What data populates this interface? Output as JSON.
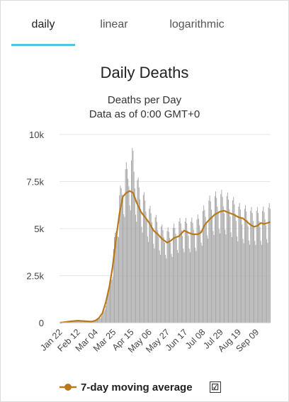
{
  "tabs": [
    {
      "label": "daily",
      "active": true
    },
    {
      "label": "linear",
      "active": false
    },
    {
      "label": "logarithmic",
      "active": false
    }
  ],
  "colors": {
    "bar": "#a6a6a6",
    "line": "#b8791a",
    "tab_underline": "#4fc3e8",
    "grid": "#e6e6e6"
  },
  "chart_data": {
    "type": "bar",
    "title": "Daily Deaths",
    "subtitle_line1": "Deaths per Day",
    "subtitle_line2": "Data as of 0:00 GMT+0",
    "ylim": [
      0,
      10000
    ],
    "y_ticks": [
      {
        "value": 0,
        "label": "0"
      },
      {
        "value": 2500,
        "label": "2.5k"
      },
      {
        "value": 5000,
        "label": "5k"
      },
      {
        "value": 7500,
        "label": "7.5k"
      },
      {
        "value": 10000,
        "label": "10k"
      }
    ],
    "x_ticks": [
      "Jan 22",
      "Feb 12",
      "Mar 04",
      "Mar 25",
      "Apr 15",
      "May 06",
      "May 27",
      "Jun 17",
      "Jul 08",
      "Jul 29",
      "Aug 19",
      "Sep 09"
    ],
    "x_tick_days": [
      0,
      21,
      42,
      63,
      84,
      105,
      126,
      147,
      168,
      189,
      210,
      231
    ],
    "n_days": 248,
    "daily_keypoints": [
      [
        0,
        20
      ],
      [
        10,
        60
      ],
      [
        20,
        110
      ],
      [
        28,
        90
      ],
      [
        35,
        60
      ],
      [
        42,
        110
      ],
      [
        48,
        250
      ],
      [
        53,
        700
      ],
      [
        58,
        1700
      ],
      [
        63,
        3500
      ],
      [
        68,
        5600
      ],
      [
        72,
        6500
      ],
      [
        76,
        7200
      ],
      [
        80,
        7500
      ],
      [
        84,
        7700
      ],
      [
        86,
        8300
      ],
      [
        89,
        7000
      ],
      [
        95,
        6300
      ],
      [
        100,
        5900
      ],
      [
        105,
        5400
      ],
      [
        112,
        5000
      ],
      [
        120,
        4500
      ],
      [
        126,
        4350
      ],
      [
        133,
        4500
      ],
      [
        140,
        4800
      ],
      [
        147,
        4800
      ],
      [
        154,
        4800
      ],
      [
        161,
        4900
      ],
      [
        168,
        5300
      ],
      [
        175,
        5800
      ],
      [
        182,
        6000
      ],
      [
        189,
        6100
      ],
      [
        196,
        6000
      ],
      [
        203,
        5800
      ],
      [
        210,
        5500
      ],
      [
        217,
        5400
      ],
      [
        224,
        5300
      ],
      [
        231,
        5300
      ],
      [
        238,
        5300
      ],
      [
        247,
        5500
      ]
    ],
    "series": [
      {
        "name": "7-day moving average",
        "points": [
          [
            0,
            0
          ],
          [
            14,
            80
          ],
          [
            21,
            110
          ],
          [
            30,
            80
          ],
          [
            37,
            60
          ],
          [
            42,
            120
          ],
          [
            46,
            260
          ],
          [
            50,
            520
          ],
          [
            54,
            1100
          ],
          [
            58,
            1900
          ],
          [
            62,
            3000
          ],
          [
            66,
            4500
          ],
          [
            70,
            5800
          ],
          [
            74,
            6700
          ],
          [
            78,
            6900
          ],
          [
            82,
            7000
          ],
          [
            86,
            6900
          ],
          [
            90,
            6400
          ],
          [
            95,
            5900
          ],
          [
            100,
            5600
          ],
          [
            105,
            5300
          ],
          [
            110,
            4900
          ],
          [
            115,
            4700
          ],
          [
            120,
            4450
          ],
          [
            126,
            4250
          ],
          [
            130,
            4350
          ],
          [
            134,
            4500
          ],
          [
            140,
            4600
          ],
          [
            146,
            4900
          ],
          [
            150,
            4800
          ],
          [
            156,
            4700
          ],
          [
            162,
            4700
          ],
          [
            166,
            4800
          ],
          [
            170,
            5200
          ],
          [
            176,
            5500
          ],
          [
            182,
            5750
          ],
          [
            188,
            5900
          ],
          [
            193,
            5950
          ],
          [
            198,
            5850
          ],
          [
            204,
            5750
          ],
          [
            210,
            5600
          ],
          [
            215,
            5550
          ],
          [
            220,
            5350
          ],
          [
            224,
            5200
          ],
          [
            228,
            5100
          ],
          [
            232,
            5150
          ],
          [
            236,
            5300
          ],
          [
            240,
            5250
          ],
          [
            244,
            5300
          ],
          [
            247,
            5350
          ]
        ]
      }
    ]
  }
}
